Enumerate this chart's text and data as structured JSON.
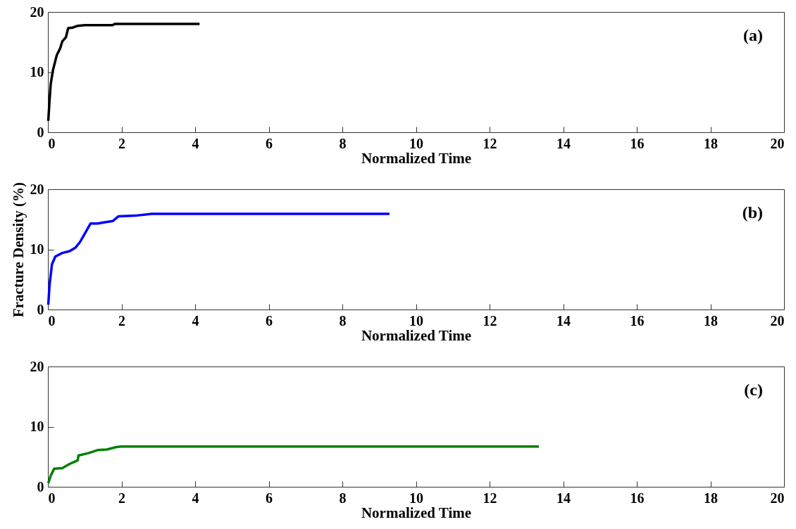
{
  "chart_data": [
    {
      "type": "line",
      "xlabel": "Normalized Time",
      "annotations": [
        "(a)"
      ],
      "xlim": [
        0,
        20
      ],
      "xticks": [
        0,
        2,
        4,
        6,
        8,
        10,
        12,
        14,
        16,
        18,
        20
      ],
      "ylim": [
        0,
        20
      ],
      "yticks": [
        0,
        10,
        20
      ],
      "grid": false,
      "x": [
        0.01,
        0.045,
        0.076,
        0.14,
        0.24,
        0.33,
        0.39,
        0.49,
        0.55,
        0.68,
        0.81,
        1.0,
        1.76,
        1.81,
        4.12
      ],
      "series": [
        {
          "color": "#000000",
          "values": [
            1.9,
            5.3,
            8.0,
            10.4,
            12.8,
            13.9,
            15.1,
            15.8,
            17.3,
            17.4,
            17.7,
            17.8,
            17.8,
            18.0,
            18.0
          ]
        }
      ]
    },
    {
      "type": "line",
      "xlabel": "Normalized Time",
      "ylabel": "Fracture Density (%)",
      "annotations": [
        "(b)"
      ],
      "xlim": [
        0,
        20
      ],
      "xticks": [
        0,
        2,
        4,
        6,
        8,
        10,
        12,
        14,
        16,
        18,
        20
      ],
      "ylim": [
        0,
        20
      ],
      "yticks": [
        0,
        10,
        20
      ],
      "grid": false,
      "x": [
        0.01,
        0.045,
        0.11,
        0.2,
        0.39,
        0.59,
        0.75,
        0.87,
        1.0,
        1.16,
        1.35,
        1.54,
        1.76,
        1.92,
        2.37,
        2.82,
        4.8,
        9.28
      ],
      "series": [
        {
          "color": "#0000ff",
          "values": [
            0.8,
            4.1,
            7.5,
            8.8,
            9.4,
            9.7,
            10.3,
            11.2,
            12.6,
            14.3,
            14.3,
            14.5,
            14.7,
            15.5,
            15.6,
            15.9,
            15.9,
            15.9
          ]
        }
      ]
    },
    {
      "type": "line",
      "xlabel": "Normalized Time",
      "annotations": [
        "(c)"
      ],
      "xlim": [
        0,
        20
      ],
      "xticks": [
        0,
        2,
        4,
        6,
        8,
        10,
        12,
        14,
        16,
        18,
        20
      ],
      "ylim": [
        0,
        20
      ],
      "yticks": [
        0,
        10,
        20
      ],
      "grid": false,
      "x": [
        0.01,
        0.08,
        0.17,
        0.39,
        0.59,
        0.81,
        0.83,
        1.1,
        1.35,
        1.6,
        1.86,
        1.99,
        13.34
      ],
      "series": [
        {
          "color": "#008000",
          "values": [
            0.6,
            1.9,
            3.0,
            3.1,
            3.8,
            4.4,
            5.2,
            5.6,
            6.1,
            6.2,
            6.6,
            6.7,
            6.7
          ]
        }
      ]
    }
  ]
}
